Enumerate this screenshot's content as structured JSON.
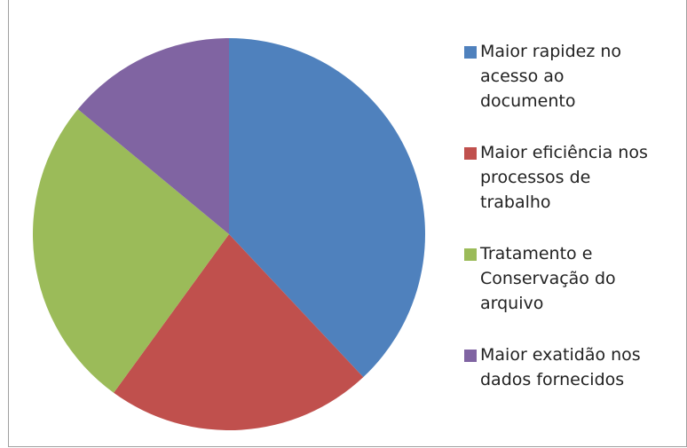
{
  "chart_data": {
    "type": "pie",
    "categories": [
      "Maior rapidez no acesso ao documento",
      "Maior eficiência nos processos de trabalho",
      "Tratamento e Conservação do arquivo",
      "Maior exatidão nos dados fornecidos"
    ],
    "values": [
      38,
      22,
      26,
      14
    ],
    "colors": [
      "#4f81bd",
      "#c0504d",
      "#9bbb59",
      "#8064a2"
    ],
    "legend": "right"
  }
}
